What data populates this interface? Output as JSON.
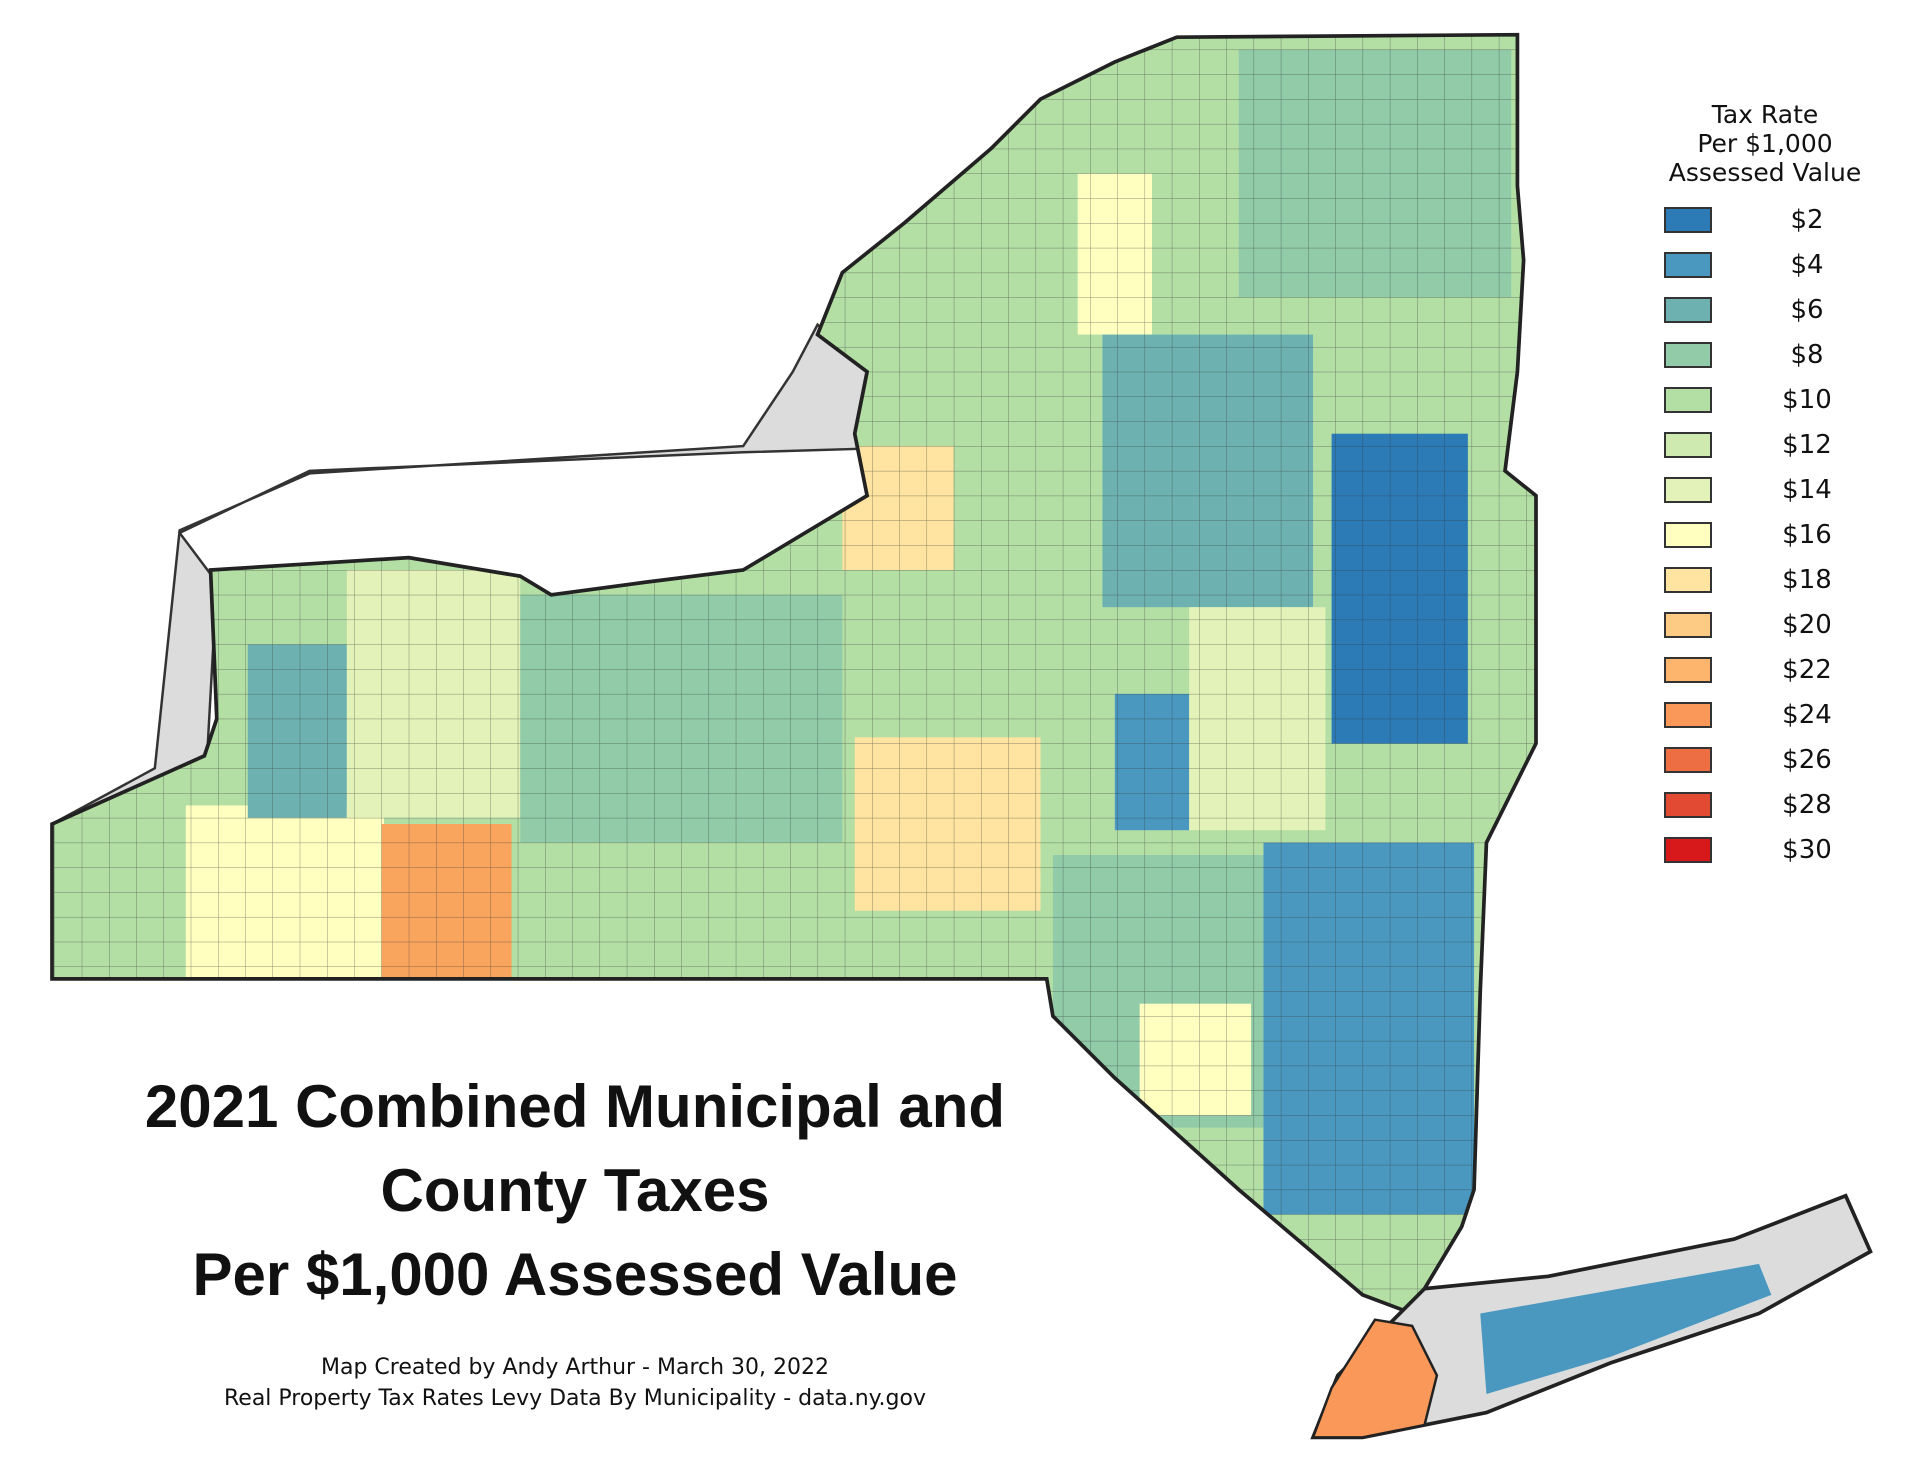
{
  "title": {
    "line1": "2021 Combined Municipal and",
    "line2": "County Taxes",
    "line3": "Per $1,000 Assessed Value"
  },
  "credits": {
    "line1": "Map Created by Andy Arthur - March 30, 2022",
    "line2": "Real Property Tax Rates Levy Data By Municipality - data.ny.gov"
  },
  "legend": {
    "title_lines": [
      "Tax Rate",
      "Per $1,000",
      "Assessed Value"
    ],
    "items": [
      {
        "label": "$2",
        "color": "#2c7bb6"
      },
      {
        "label": "$4",
        "color": "#4a98c0"
      },
      {
        "label": "$6",
        "color": "#6db2b0"
      },
      {
        "label": "$8",
        "color": "#91cba8"
      },
      {
        "label": "$10",
        "color": "#b3dfa5"
      },
      {
        "label": "$12",
        "color": "#cfeab0"
      },
      {
        "label": "$14",
        "color": "#e3f2b9"
      },
      {
        "label": "$16",
        "color": "#ffffc0"
      },
      {
        "label": "$18",
        "color": "#fee4a0"
      },
      {
        "label": "$20",
        "color": "#fecb85"
      },
      {
        "label": "$22",
        "color": "#fdb46d"
      },
      {
        "label": "$24",
        "color": "#f99858"
      },
      {
        "label": "$26",
        "color": "#ee6e44"
      },
      {
        "label": "$28",
        "color": "#e24a33"
      },
      {
        "label": "$30",
        "color": "#d7191c"
      }
    ]
  },
  "map": {
    "water_color": "#dcdcdc",
    "boundary_color": "#222222"
  }
}
